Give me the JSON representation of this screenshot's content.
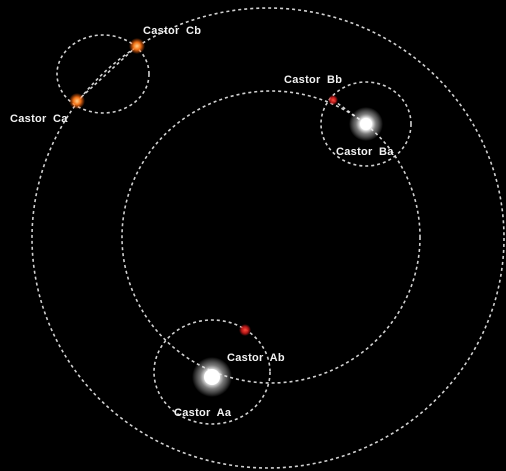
{
  "stars": {
    "castor_aa": {
      "label": "Castor  Aa",
      "color": "#ffffff"
    },
    "castor_ab": {
      "label": "Castor  Ab",
      "color": "#e02828"
    },
    "castor_ba": {
      "label": "Castor  Ba",
      "color": "#ffffff"
    },
    "castor_bb": {
      "label": "Castor  Bb",
      "color": "#e02828"
    },
    "castor_ca": {
      "label": "Castor  Ca",
      "color": "#ff7a1a"
    },
    "castor_cb": {
      "label": "Castor  Cb",
      "color": "#ff7a1a"
    }
  },
  "colors": {
    "background": "#000000",
    "orbit_line": "#e8e8e8"
  }
}
